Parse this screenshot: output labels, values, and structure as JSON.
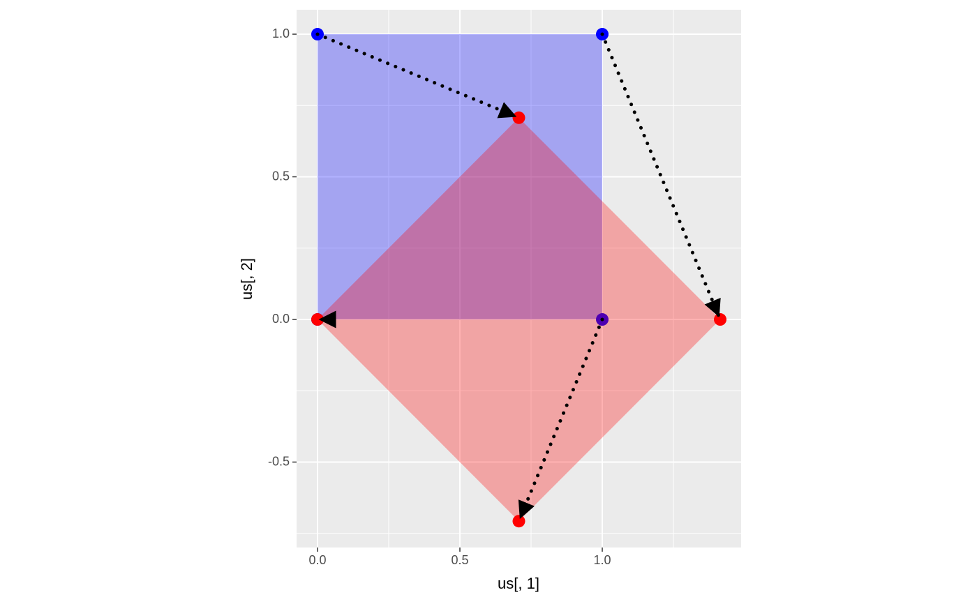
{
  "chart_data": {
    "type": "polygon",
    "xlabel": "us[, 1]",
    "ylabel": "us[, 2]",
    "xlim": [
      -0.0735,
      1.4877
    ],
    "ylim": [
      -0.7995,
      1.0856
    ],
    "xticks": [
      {
        "value": 0,
        "label": "0.0"
      },
      {
        "value": 0.5,
        "label": "0.5"
      },
      {
        "value": 1,
        "label": "1.0"
      }
    ],
    "yticks": [
      {
        "value": -0.5,
        "label": "-0.5"
      },
      {
        "value": 0,
        "label": "0.0"
      },
      {
        "value": 0.5,
        "label": "0.5"
      },
      {
        "value": 1,
        "label": "1.0"
      }
    ],
    "minor_xticks": [
      0.25,
      0.75,
      1.25
    ],
    "minor_yticks": [
      -0.75,
      -0.25,
      0.25,
      0.75
    ],
    "grid": true,
    "series": [
      {
        "color": "#0000ff",
        "x": [
          0,
          1,
          1,
          0
        ],
        "y": [
          0,
          0,
          1,
          1
        ]
      },
      {
        "color": "#ff0000",
        "x": [
          0,
          0.7071,
          1.4142,
          0.7071
        ],
        "y": [
          0,
          -0.7071,
          0,
          0.7071
        ]
      }
    ],
    "arrows": true
  }
}
